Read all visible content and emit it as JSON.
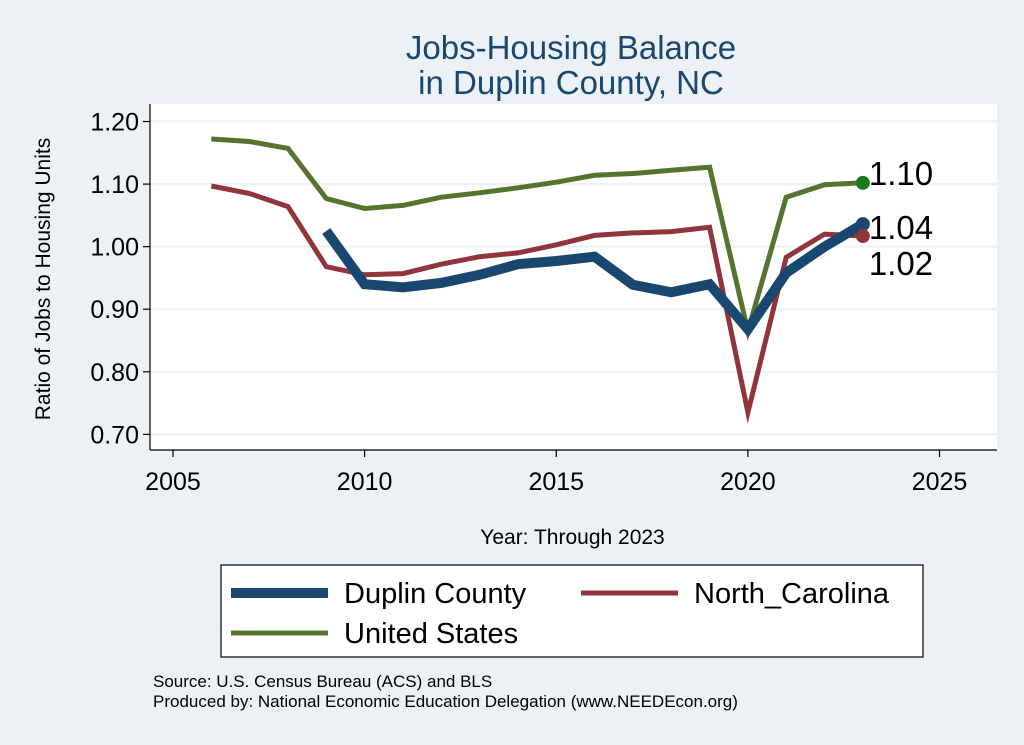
{
  "chart_data": {
    "type": "line",
    "title": [
      "Jobs-Housing Balance",
      "in Duplin County, NC"
    ],
    "xlabel": "Year: Through 2023",
    "ylabel": "Ratio of Jobs to Housing Units",
    "xlim": [
      2004.4,
      2026.5
    ],
    "ylim": [
      0.675,
      1.228
    ],
    "xticks": [
      2005,
      2010,
      2015,
      2020,
      2025
    ],
    "yticks": [
      0.7,
      0.8,
      0.9,
      1.0,
      1.1,
      1.2
    ],
    "ytick_labels": [
      "0.70",
      "0.80",
      "0.90",
      "1.00",
      "1.10",
      "1.20"
    ],
    "grid": true,
    "legend_position": "bottom",
    "series": [
      {
        "name": "Duplin County",
        "color": "#1a476f",
        "x": [
          2009,
          2010,
          2011,
          2012,
          2013,
          2014,
          2015,
          2016,
          2017,
          2018,
          2019,
          2020,
          2021,
          2022,
          2023
        ],
        "y": [
          1.025,
          0.94,
          0.935,
          0.942,
          0.955,
          0.972,
          0.977,
          0.984,
          0.939,
          0.927,
          0.94,
          0.868,
          0.958,
          1.0,
          1.036
        ],
        "end_label": "1.04"
      },
      {
        "name": "North_Carolina",
        "color": "#90353b",
        "x": [
          2006,
          2007,
          2008,
          2009,
          2010,
          2011,
          2012,
          2013,
          2014,
          2015,
          2016,
          2017,
          2018,
          2019,
          2020,
          2021,
          2022,
          2023
        ],
        "y": [
          1.097,
          1.085,
          1.064,
          0.968,
          0.955,
          0.957,
          0.972,
          0.984,
          0.99,
          1.003,
          1.018,
          1.022,
          1.024,
          1.031,
          0.735,
          0.983,
          1.02,
          1.017
        ],
        "end_label": "1.02"
      },
      {
        "name": "United States",
        "color": "#55752f",
        "x": [
          2006,
          2007,
          2008,
          2009,
          2010,
          2011,
          2012,
          2013,
          2014,
          2015,
          2016,
          2017,
          2018,
          2019,
          2020,
          2021,
          2022,
          2023
        ],
        "y": [
          1.172,
          1.168,
          1.157,
          1.077,
          1.061,
          1.066,
          1.079,
          1.086,
          1.094,
          1.103,
          1.114,
          1.117,
          1.122,
          1.127,
          0.865,
          1.079,
          1.099,
          1.102
        ],
        "end_label": "1.10"
      }
    ],
    "end_dot_colors": [
      "#1a476f",
      "#90353b",
      "#1a7a1a"
    ]
  },
  "footer": {
    "source": "Source: U.S. Census Bureau (ACS) and BLS",
    "produced_by": "Produced by: National Economic Education Delegation (www.NEEDEcon.org)"
  }
}
